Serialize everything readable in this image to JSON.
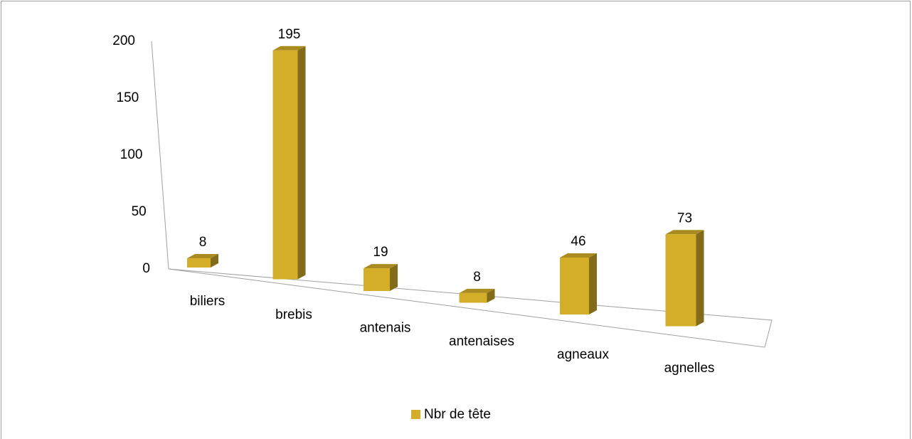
{
  "chart_data": {
    "type": "bar3d",
    "categories": [
      "biliers",
      "brebis",
      "antenais",
      "antenaises",
      "agneaux",
      "agnelles"
    ],
    "series": [
      {
        "name": "Nbr de tête",
        "color": "#d4ae28",
        "values": [
          8,
          195,
          19,
          8,
          46,
          73
        ]
      }
    ],
    "ylim": [
      0,
      200
    ],
    "yticks": [
      0,
      50,
      100,
      150,
      200
    ],
    "legend": "bottom"
  }
}
